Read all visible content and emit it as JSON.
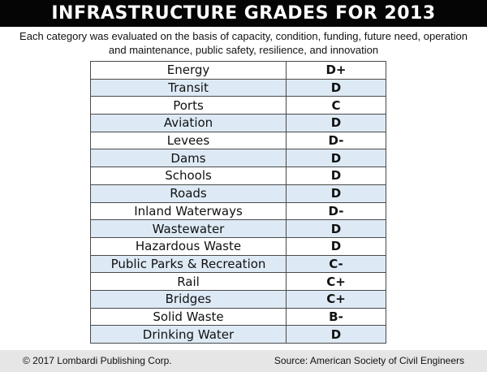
{
  "title": "INFRASTRUCTURE GRADES FOR 2013",
  "subtitle_line1": "Each category was evaluated on the basis of capacity, condition, funding, future need, operation",
  "subtitle_line2": "and maintenance, public safety, resilience, and innovation",
  "rows": [
    {
      "category": "Energy",
      "grade": "D+"
    },
    {
      "category": "Transit",
      "grade": "D"
    },
    {
      "category": "Ports",
      "grade": "C"
    },
    {
      "category": "Aviation",
      "grade": "D"
    },
    {
      "category": "Levees",
      "grade": "D-"
    },
    {
      "category": "Dams",
      "grade": "D"
    },
    {
      "category": "Schools",
      "grade": "D"
    },
    {
      "category": "Roads",
      "grade": "D"
    },
    {
      "category": "Inland Waterways",
      "grade": "D-"
    },
    {
      "category": "Wastewater",
      "grade": "D"
    },
    {
      "category": "Hazardous Waste",
      "grade": "D"
    },
    {
      "category": "Public Parks & Recreation",
      "grade": "C-"
    },
    {
      "category": "Rail",
      "grade": "C+"
    },
    {
      "category": "Bridges",
      "grade": "C+"
    },
    {
      "category": "Solid Waste",
      "grade": "B-"
    },
    {
      "category": "Drinking Water",
      "grade": "D"
    }
  ],
  "footer": {
    "copyright": "© 2017 Lombardi Publishing Corp.",
    "source": "Source: American Society of Civil Engineers"
  },
  "colors": {
    "title_bg": "#050505",
    "row_shade": "#ddeaf6",
    "footer_bg": "#e6e6e6"
  }
}
